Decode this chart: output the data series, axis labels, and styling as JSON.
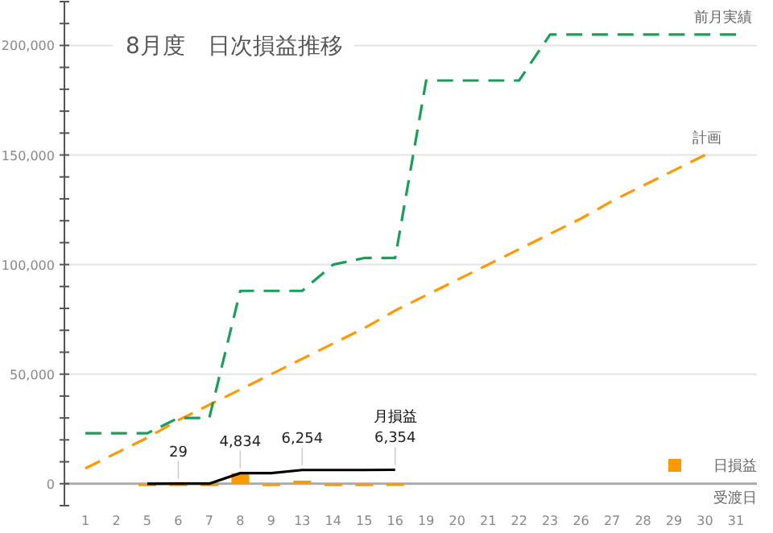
{
  "chart_data": {
    "type": "line",
    "title": "8月度　日次損益推移",
    "xlabel": "受渡日",
    "categories": [
      "1",
      "2",
      "5",
      "6",
      "7",
      "8",
      "9",
      "13",
      "14",
      "15",
      "16",
      "19",
      "20",
      "21",
      "22",
      "23",
      "26",
      "27",
      "28",
      "29",
      "30",
      "31"
    ],
    "ylim": [
      -10000,
      220000
    ],
    "yticks": [
      {
        "value": -10000,
        "label": null
      },
      0,
      {
        "value": 10000,
        "label": null
      },
      {
        "value": 20000,
        "label": null
      },
      {
        "value": 30000,
        "label": null
      },
      {
        "value": 40000,
        "label": null
      },
      {
        "value": 50000,
        "label": "50,000"
      },
      {
        "value": 60000,
        "label": null
      },
      {
        "value": 70000,
        "label": null
      },
      {
        "value": 80000,
        "label": null
      },
      {
        "value": 90000,
        "label": null
      },
      {
        "value": 100000,
        "label": "100,000"
      },
      {
        "value": 110000,
        "label": null
      },
      {
        "value": 120000,
        "label": null
      },
      {
        "value": 130000,
        "label": null
      },
      {
        "value": 140000,
        "label": null
      },
      {
        "value": 150000,
        "label": "150,000"
      },
      {
        "value": 160000,
        "label": null
      },
      {
        "value": 170000,
        "label": null
      },
      {
        "value": 180000,
        "label": null
      },
      {
        "value": 190000,
        "label": null
      },
      {
        "value": 200000,
        "label": "200,000"
      },
      {
        "value": 210000,
        "label": null
      },
      {
        "value": 220000,
        "label": null
      }
    ],
    "grid": "y",
    "legend": "bottom right",
    "marker": "none",
    "series": [
      {
        "name": "日損益",
        "type": "bar",
        "color": "#ff9900",
        "values": [
          null,
          null,
          0,
          29,
          0,
          4800,
          0,
          1400,
          0,
          0,
          100,
          null,
          null,
          null,
          null,
          null,
          null,
          null,
          null,
          null,
          null,
          null
        ]
      },
      {
        "name": "月損益",
        "color": "#000000",
        "line_style": "solid",
        "values": [
          null,
          null,
          0,
          29,
          29,
          4834,
          4834,
          6254,
          6254,
          6254,
          6354,
          null,
          null,
          null,
          null,
          null,
          null,
          null,
          null,
          null,
          null,
          null
        ],
        "value_labels": [
          null,
          null,
          null,
          "29",
          null,
          "4,834",
          null,
          "6,254",
          null,
          null,
          "6,354",
          null,
          null,
          null,
          null,
          null,
          null,
          null,
          null,
          null,
          null,
          null
        ]
      },
      {
        "name": "計画",
        "color": "#ff9900",
        "line_style": "dashed",
        "values": [
          7000,
          14000,
          21000,
          29000,
          36000,
          43000,
          50000,
          57000,
          64000,
          71000,
          79000,
          86000,
          93000,
          100000,
          107000,
          114000,
          121000,
          129000,
          136000,
          143000,
          150000,
          null
        ]
      },
      {
        "name": "前月実績",
        "color": "#1a9e5a",
        "line_style": "dashed",
        "values": [
          23000,
          23000,
          23000,
          30000,
          30000,
          88000,
          88000,
          88000,
          100000,
          103000,
          103000,
          184000,
          184000,
          184000,
          184000,
          205000,
          205000,
          205000,
          205000,
          205000,
          205000,
          205000
        ]
      }
    ]
  }
}
